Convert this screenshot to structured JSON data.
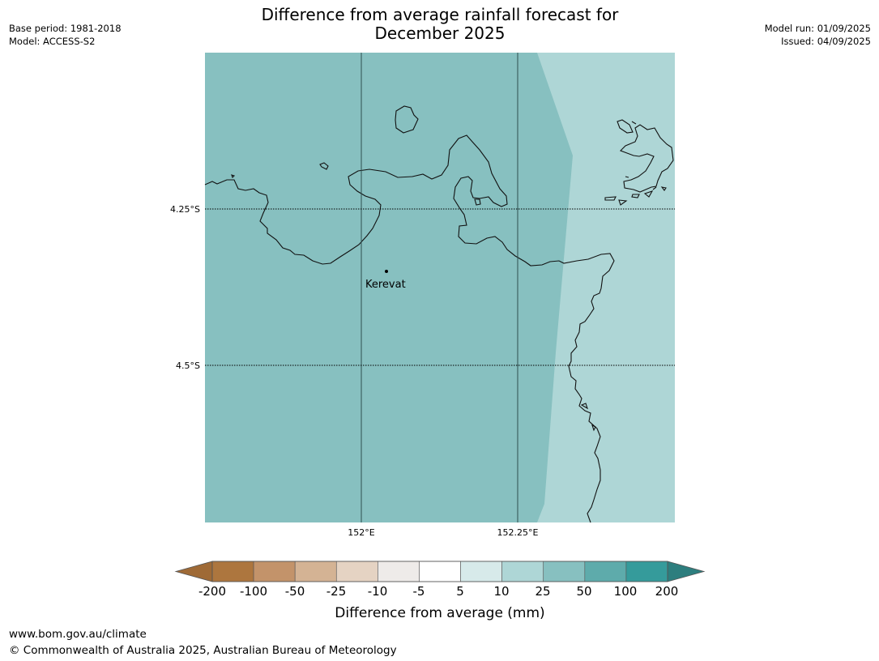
{
  "header": {
    "base_period": "Base period: 1981-2018",
    "model": "Model: ACCESS-S2",
    "model_run": "Model run: 01/09/2025",
    "issued": "Issued: 04/09/2025"
  },
  "title": {
    "line1": "Difference from average rainfall forecast for",
    "line2": "December 2025"
  },
  "map": {
    "lat_labels": [
      "4.25°S",
      "4.5°S"
    ],
    "lon_labels": [
      "152°E",
      "152.25°E"
    ],
    "place": "Kerevat",
    "colors": {
      "land_zone": "#87c0c0",
      "east_zone": "#aed6d6",
      "coast": "#111111",
      "grid": "#2f4f4f"
    }
  },
  "legend": {
    "title": "Difference from average (mm)",
    "tick_labels": [
      "-200",
      "-100",
      "-50",
      "-25",
      "-10",
      "-5",
      "5",
      "10",
      "25",
      "50",
      "100",
      "200"
    ],
    "colors": [
      "#9f6a36",
      "#ad763e",
      "#c3936a",
      "#d4b394",
      "#e5d3c3",
      "#eeebe9",
      "#ffffff",
      "#d7eaea",
      "#aed6d6",
      "#87c0c0",
      "#5eabab",
      "#359b9b",
      "#2d7e7e"
    ]
  },
  "footer": {
    "url": "www.bom.gov.au/climate",
    "copyright": "© Commonwealth of Australia 2025, Australian Bureau of Meteorology"
  }
}
